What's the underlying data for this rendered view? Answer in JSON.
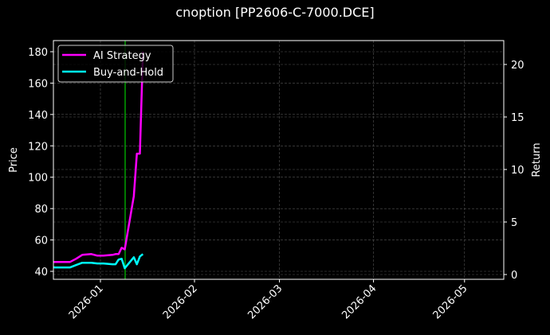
{
  "title": "cnoption [PP2606-C-7000.DCE]",
  "colors": {
    "background": "#000000",
    "ai_strategy": "#ff00ff",
    "buy_and_hold": "#00ffff",
    "marker_line": "#00aa00",
    "grid": "#555555",
    "axes": "#ffffff"
  },
  "chart_data": {
    "type": "line",
    "title": "cnoption [PP2606-C-7000.DCE]",
    "xlabel": "",
    "ylabel": "Price",
    "ylabel_right": "Return",
    "x_ticks": [
      "2026-01",
      "2026-02",
      "2026-03",
      "2026-04",
      "2026-05"
    ],
    "y_ticks_left": [
      40,
      60,
      80,
      100,
      120,
      140,
      160,
      180
    ],
    "y_ticks_right": [
      0,
      5,
      10,
      15,
      20
    ],
    "ylim_left": [
      35,
      186
    ],
    "ylim_right": [
      -0.3,
      22
    ],
    "grid": true,
    "legend_position": "upper left",
    "legend": [
      "AI Strategy",
      "Buy-and-Hold"
    ],
    "series": [
      {
        "name": "AI Strategy",
        "axis": "left",
        "color": "#ff00ff",
        "x": [
          "2025-12-15",
          "2025-12-17",
          "2025-12-19",
          "2025-12-22",
          "2025-12-24",
          "2025-12-26",
          "2025-12-29",
          "2025-12-31",
          "2026-01-02",
          "2026-01-05",
          "2026-01-06",
          "2026-01-07",
          "2026-01-08",
          "2026-01-09",
          "2026-01-12",
          "2026-01-13",
          "2026-01-14",
          "2026-01-15"
        ],
        "values": [
          46,
          46,
          46,
          46,
          48,
          50.5,
          51,
          50,
          50,
          50.5,
          51,
          51,
          55,
          54,
          88,
          115,
          115,
          180
        ]
      },
      {
        "name": "Buy-and-Hold",
        "axis": "left",
        "color": "#00ffff",
        "x": [
          "2025-12-15",
          "2025-12-17",
          "2025-12-19",
          "2025-12-22",
          "2025-12-24",
          "2025-12-26",
          "2025-12-29",
          "2025-12-31",
          "2026-01-02",
          "2026-01-05",
          "2026-01-06",
          "2026-01-07",
          "2026-01-08",
          "2026-01-09",
          "2026-01-12",
          "2026-01-13",
          "2026-01-14",
          "2026-01-15"
        ],
        "values": [
          43,
          42.5,
          42.5,
          42.5,
          44,
          45.5,
          45.5,
          45,
          45,
          44.5,
          44.5,
          47.5,
          48,
          42,
          49,
          44.5,
          49.5,
          51
        ]
      }
    ],
    "annotations": [
      {
        "type": "vertical_line",
        "x": "2026-01-09",
        "color": "#00aa00"
      }
    ]
  },
  "legend": {
    "items": [
      {
        "label": "AI Strategy",
        "color": "#ff00ff"
      },
      {
        "label": "Buy-and-Hold",
        "color": "#00ffff"
      }
    ]
  }
}
